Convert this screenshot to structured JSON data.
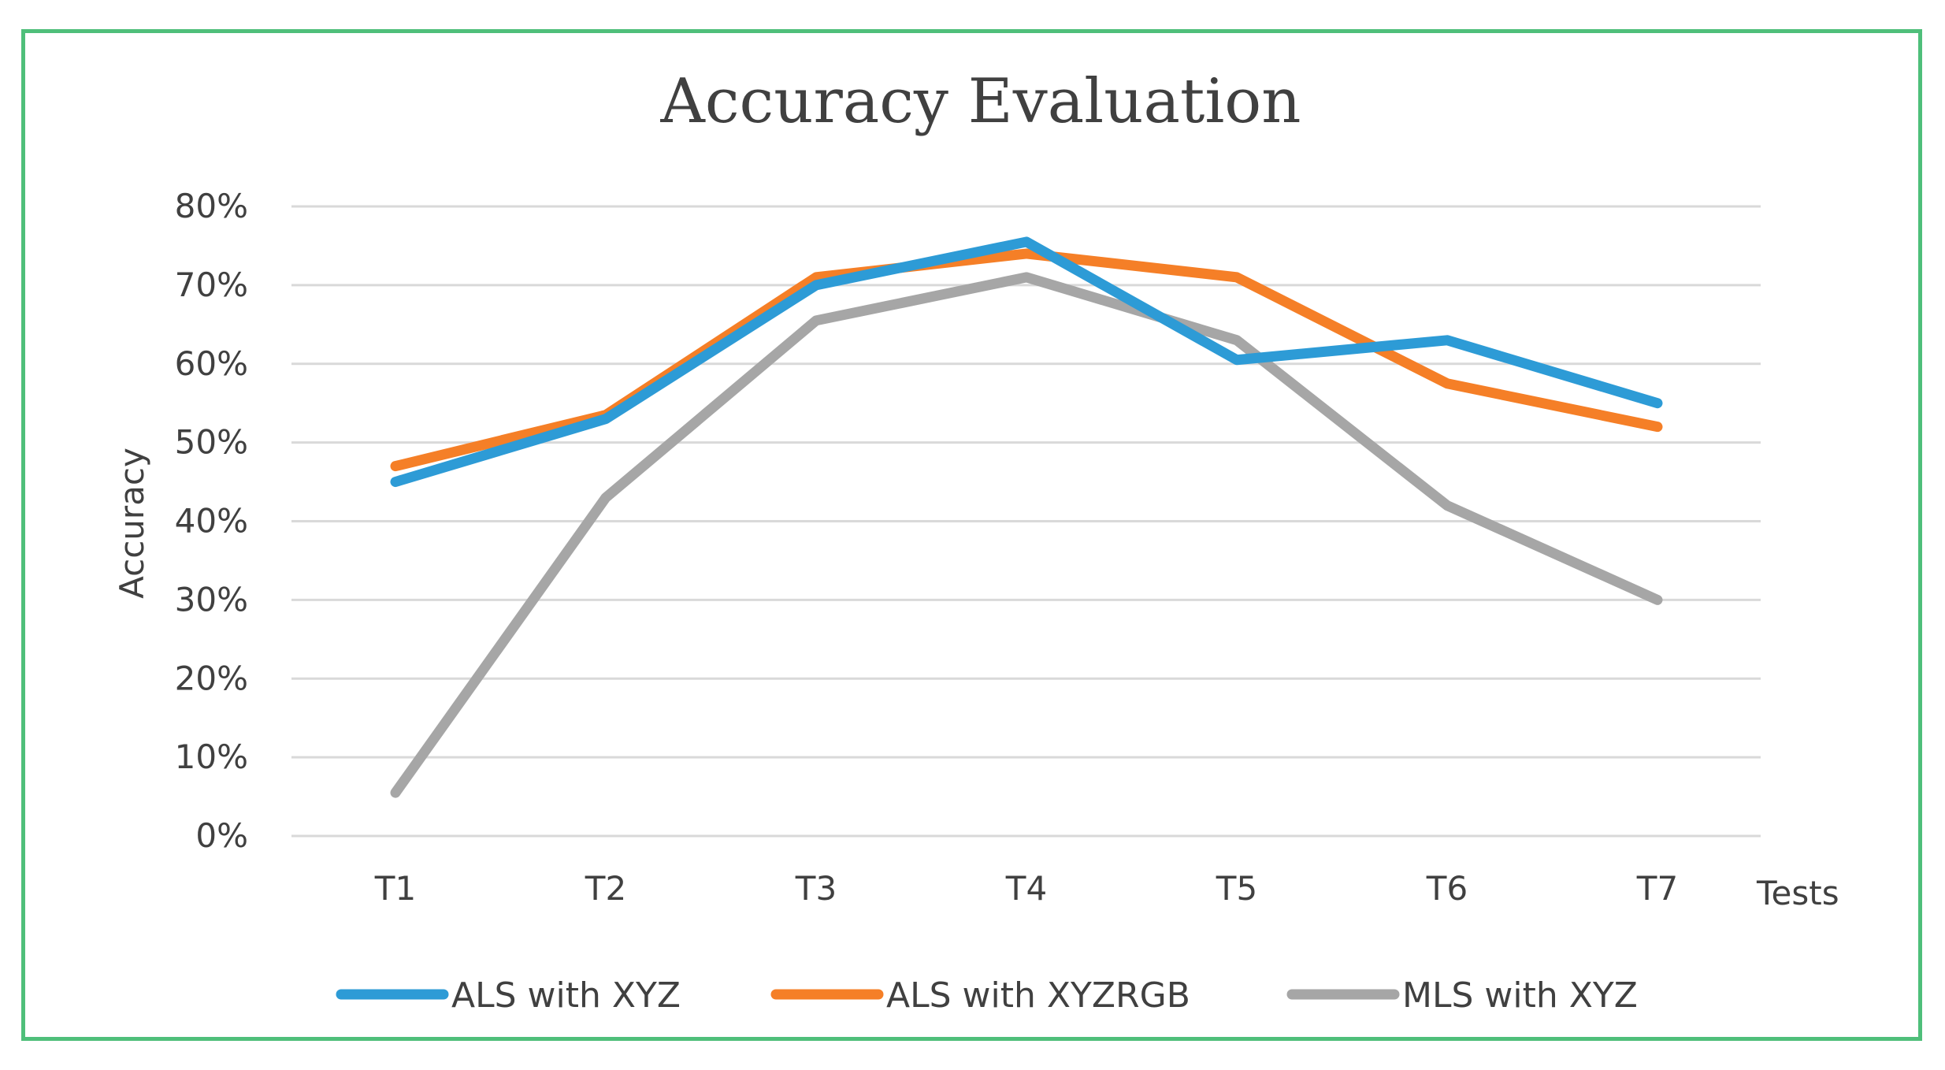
{
  "chart_data": {
    "type": "line",
    "title": "Accuracy Evaluation",
    "xlabel": "Tests",
    "ylabel": "Accuracy",
    "categories": [
      "T1",
      "T2",
      "T3",
      "T4",
      "T5",
      "T6",
      "T7"
    ],
    "ylim": [
      0,
      80
    ],
    "yticks": [
      "0%",
      "10%",
      "20%",
      "30%",
      "40%",
      "50%",
      "60%",
      "70%",
      "80%"
    ],
    "grid": true,
    "legend_position": "bottom",
    "series": [
      {
        "name": "ALS with XYZ",
        "color": "#2d9bd6",
        "values": [
          45,
          53,
          70,
          75.5,
          60.5,
          63,
          55
        ]
      },
      {
        "name": "ALS with XYZRGB",
        "color": "#f57f27",
        "values": [
          47,
          53.5,
          71,
          74,
          71,
          57.5,
          52
        ]
      },
      {
        "name": "MLS with XYZ",
        "color": "#a6a6a6",
        "values": [
          5.5,
          43,
          65.5,
          71,
          63,
          42,
          30
        ]
      }
    ]
  }
}
